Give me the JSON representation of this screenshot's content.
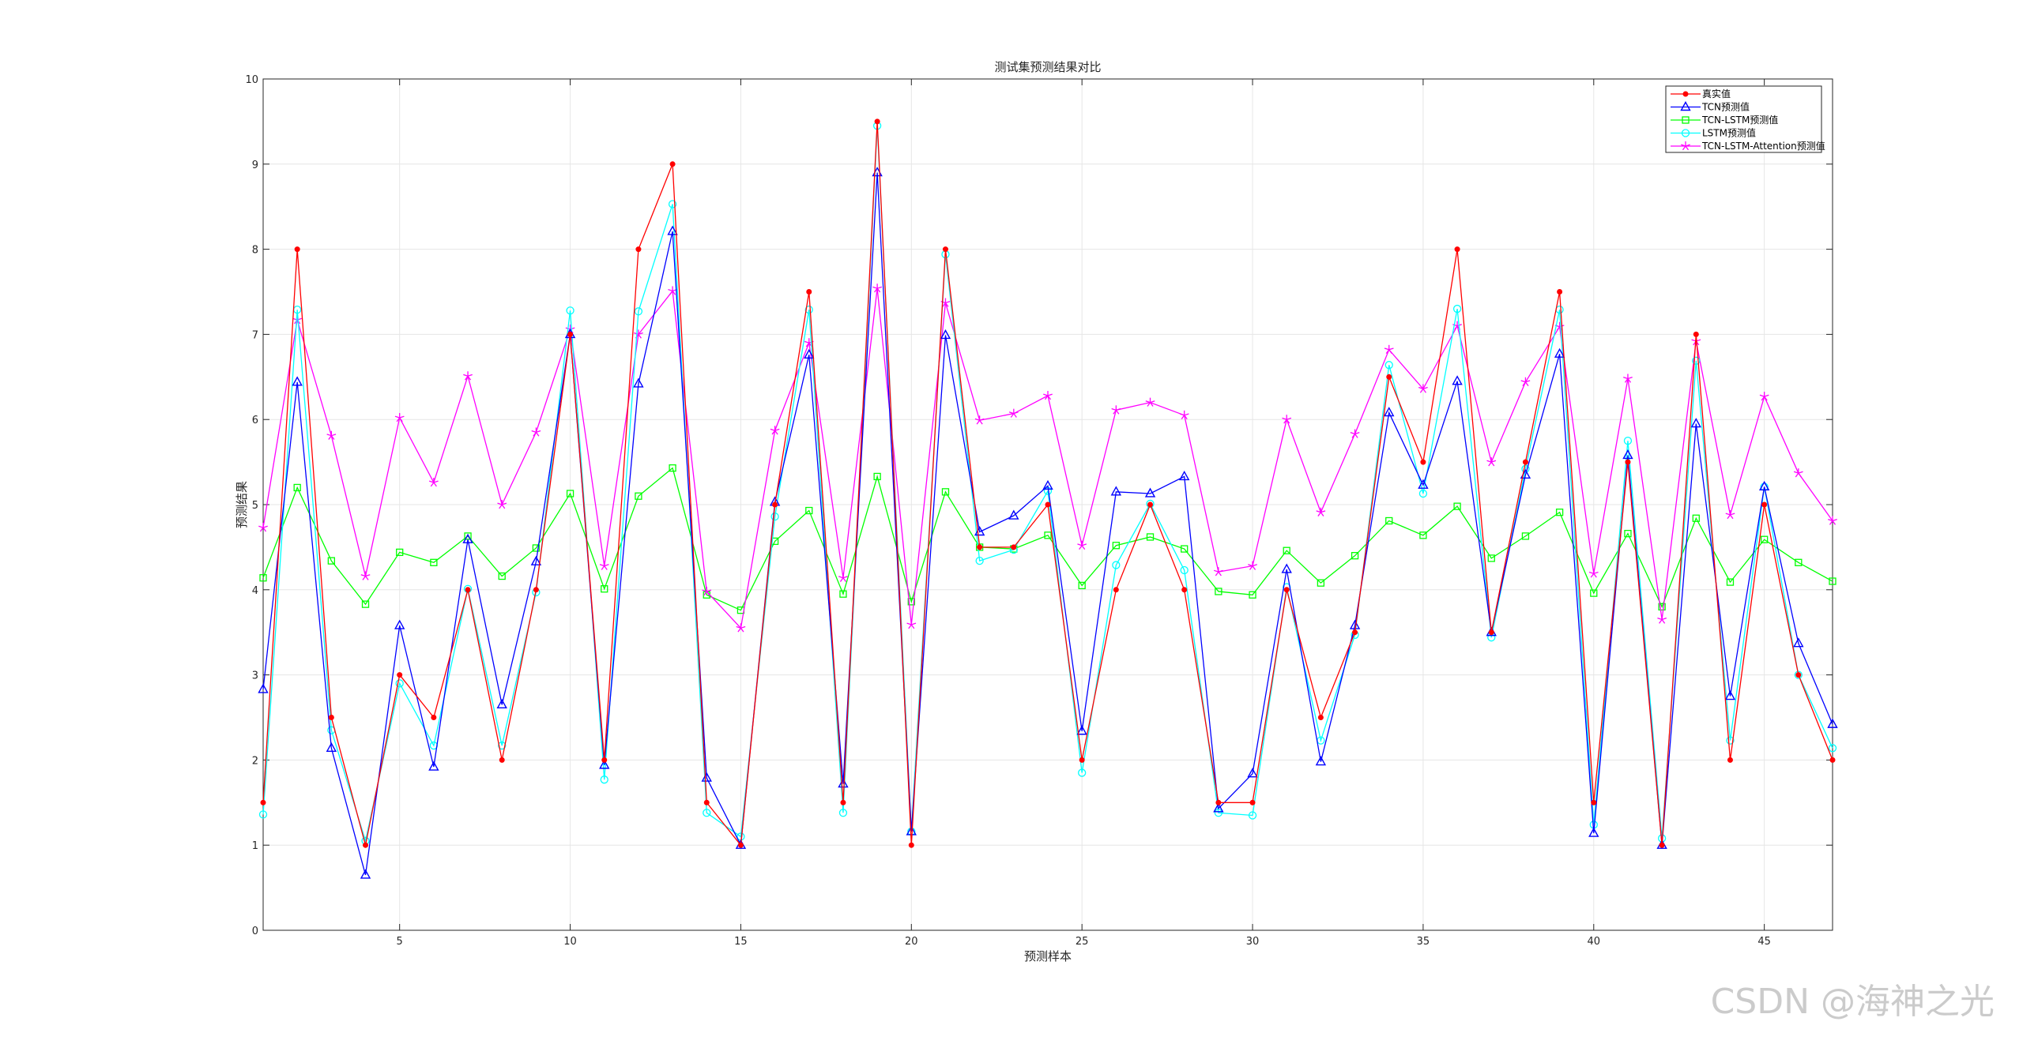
{
  "watermark": "CSDN @海神之光",
  "chart_data": {
    "type": "line",
    "title": "测试集预测结果对比",
    "xlabel": "预测样本",
    "ylabel": "预测结果",
    "xlim": [
      1,
      47
    ],
    "ylim": [
      0,
      10
    ],
    "xticks": [
      5,
      10,
      15,
      20,
      25,
      30,
      35,
      40,
      45
    ],
    "yticks": [
      0,
      1,
      2,
      3,
      4,
      5,
      6,
      7,
      8,
      9,
      10
    ],
    "grid": true,
    "legend_position": "top-right",
    "x": [
      1,
      2,
      3,
      4,
      5,
      6,
      7,
      8,
      9,
      10,
      11,
      12,
      13,
      14,
      15,
      16,
      17,
      18,
      19,
      20,
      21,
      22,
      23,
      24,
      25,
      26,
      27,
      28,
      29,
      30,
      31,
      32,
      33,
      34,
      35,
      36,
      37,
      38,
      39,
      40,
      41,
      42,
      43,
      44,
      45,
      46,
      47
    ],
    "series": [
      {
        "name": "真实值",
        "color": "#ff0000",
        "marker": "dot",
        "values": [
          1.5,
          8,
          2.5,
          1,
          3,
          2.5,
          4,
          2,
          4,
          7,
          2,
          8,
          9,
          1.5,
          1,
          5,
          7.5,
          1.5,
          9.5,
          1,
          8,
          4.5,
          4.5,
          5,
          2,
          4,
          5,
          4,
          1.5,
          1.5,
          4,
          2.5,
          3.5,
          6.5,
          5.5,
          8,
          3.5,
          5.5,
          7.5,
          1.5,
          5.5,
          1,
          7,
          2,
          5,
          3,
          2
        ]
      },
      {
        "name": "TCN预测值",
        "color": "#0000ff",
        "marker": "triangle",
        "values": [
          2.83,
          6.44,
          2.14,
          0.65,
          3.58,
          1.92,
          4.59,
          2.65,
          4.33,
          7.0,
          1.94,
          6.42,
          8.21,
          1.79,
          1.0,
          5.03,
          6.76,
          1.72,
          8.9,
          1.16,
          6.99,
          4.68,
          4.87,
          5.22,
          2.34,
          5.15,
          5.13,
          5.33,
          1.43,
          1.84,
          4.24,
          1.98,
          3.58,
          6.08,
          5.23,
          6.45,
          3.5,
          5.35,
          6.77,
          1.14,
          5.58,
          1.0,
          5.95,
          2.75,
          5.21,
          3.37,
          2.42
        ]
      },
      {
        "name": "TCN-LSTM预测值",
        "color": "#00ff00",
        "marker": "square",
        "values": [
          4.14,
          5.2,
          4.34,
          3.83,
          4.44,
          4.32,
          4.63,
          4.16,
          4.49,
          5.13,
          4.01,
          5.1,
          5.43,
          3.94,
          3.76,
          4.57,
          4.93,
          3.95,
          5.33,
          3.86,
          5.15,
          4.5,
          4.48,
          4.64,
          4.05,
          4.52,
          4.62,
          4.48,
          3.98,
          3.94,
          4.46,
          4.08,
          4.4,
          4.81,
          4.64,
          4.98,
          4.37,
          4.63,
          4.91,
          3.96,
          4.66,
          3.8,
          4.84,
          4.09,
          4.59,
          4.32,
          4.1
        ]
      },
      {
        "name": "LSTM预测值",
        "color": "#00ffff",
        "marker": "circle",
        "values": [
          1.36,
          7.29,
          2.35,
          1.05,
          2.9,
          2.17,
          4.01,
          2.17,
          3.97,
          7.28,
          1.77,
          7.27,
          8.53,
          1.38,
          1.1,
          4.86,
          7.29,
          1.38,
          9.45,
          1.16,
          7.94,
          4.34,
          4.47,
          5.16,
          1.85,
          4.29,
          5.01,
          4.23,
          1.38,
          1.35,
          4.03,
          2.23,
          3.47,
          6.64,
          5.13,
          7.3,
          3.44,
          5.42,
          7.29,
          1.24,
          5.75,
          1.08,
          6.69,
          2.23,
          5.21,
          3.0,
          2.14
        ]
      },
      {
        "name": "TCN-LSTM-Attention预测值",
        "color": "#ff00ff",
        "marker": "star",
        "values": [
          4.73,
          7.17,
          5.81,
          4.16,
          6.02,
          5.26,
          6.51,
          5.0,
          5.85,
          7.06,
          4.28,
          7.0,
          7.51,
          3.98,
          3.55,
          5.87,
          6.9,
          4.14,
          7.54,
          3.59,
          7.37,
          5.99,
          6.07,
          6.28,
          4.52,
          6.11,
          6.2,
          6.05,
          4.21,
          4.28,
          6.0,
          4.91,
          5.83,
          6.82,
          6.36,
          7.1,
          5.5,
          6.44,
          7.09,
          4.19,
          6.48,
          3.65,
          6.92,
          4.88,
          6.27,
          5.37,
          4.81
        ]
      }
    ]
  }
}
